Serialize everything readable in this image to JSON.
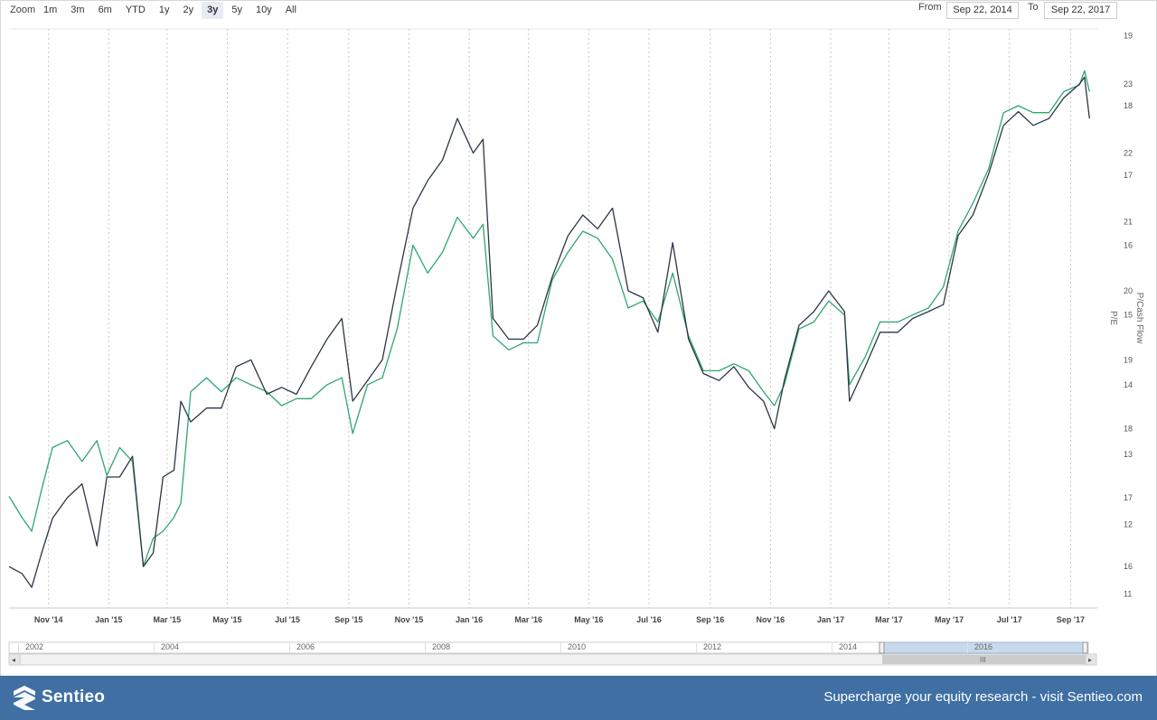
{
  "toolbar": {
    "zoom_label": "Zoom",
    "zoom_buttons": [
      "1m",
      "3m",
      "6m",
      "YTD",
      "1y",
      "2y",
      "3y",
      "5y",
      "10y",
      "All"
    ],
    "active_zoom": "3y",
    "from_label": "From",
    "from_value": "Sep 22, 2014",
    "to_label": "To",
    "to_value": "Sep 22, 2017"
  },
  "chart_data": {
    "type": "line",
    "x_tick_labels": [
      "Nov '14",
      "Jan '15",
      "Mar '15",
      "May '15",
      "Jul '15",
      "Sep '15",
      "Nov '15",
      "Jan '16",
      "Mar '16",
      "May '16",
      "Jul '16",
      "Sep '16",
      "Nov '16",
      "Jan '17",
      "Mar '17",
      "May '17",
      "Jul '17",
      "Sep '17"
    ],
    "y_left": {
      "label": "P/E",
      "ticks": [
        16,
        17,
        18,
        19,
        20,
        21,
        22,
        23
      ],
      "range": [
        15.4,
        23.8
      ]
    },
    "y_right": {
      "label": "P/Cash Flow",
      "ticks": [
        11,
        12,
        13,
        14,
        15,
        16,
        17,
        18,
        19
      ],
      "range": [
        10.8,
        19.1
      ]
    },
    "grid": "vertical dotted",
    "colors": {
      "pe": "#2b3645",
      "pcf": "#2fa66f"
    },
    "series": [
      {
        "axis": "left",
        "points": [
          [
            "2014-09-22",
            16.0
          ],
          [
            "2014-10-05",
            15.9
          ],
          [
            "2014-10-15",
            15.7
          ],
          [
            "2014-10-25",
            16.2
          ],
          [
            "2014-11-05",
            16.7
          ],
          [
            "2014-11-20",
            17.0
          ],
          [
            "2014-12-05",
            17.2
          ],
          [
            "2014-12-20",
            16.3
          ],
          [
            "2014-12-30",
            17.3
          ],
          [
            "2015-01-12",
            17.3
          ],
          [
            "2015-01-25",
            17.6
          ],
          [
            "2015-02-05",
            16.0
          ],
          [
            "2015-02-15",
            16.2
          ],
          [
            "2015-02-25",
            17.3
          ],
          [
            "2015-03-08",
            17.4
          ],
          [
            "2015-03-15",
            18.4
          ],
          [
            "2015-03-25",
            18.1
          ],
          [
            "2015-04-10",
            18.3
          ],
          [
            "2015-04-25",
            18.3
          ],
          [
            "2015-05-10",
            18.9
          ],
          [
            "2015-05-25",
            19.0
          ],
          [
            "2015-06-10",
            18.5
          ],
          [
            "2015-06-25",
            18.6
          ],
          [
            "2015-07-10",
            18.5
          ],
          [
            "2015-07-25",
            18.9
          ],
          [
            "2015-08-10",
            19.3
          ],
          [
            "2015-08-25",
            19.6
          ],
          [
            "2015-09-05",
            18.4
          ],
          [
            "2015-09-20",
            18.7
          ],
          [
            "2015-10-05",
            19.0
          ],
          [
            "2015-10-20",
            20.1
          ],
          [
            "2015-11-05",
            21.2
          ],
          [
            "2015-11-20",
            21.6
          ],
          [
            "2015-12-05",
            21.9
          ],
          [
            "2015-12-20",
            22.5
          ],
          [
            "2016-01-05",
            22.0
          ],
          [
            "2016-01-15",
            22.2
          ],
          [
            "2016-01-25",
            19.6
          ],
          [
            "2016-02-10",
            19.3
          ],
          [
            "2016-02-25",
            19.3
          ],
          [
            "2016-03-10",
            19.5
          ],
          [
            "2016-03-25",
            20.2
          ],
          [
            "2016-04-10",
            20.8
          ],
          [
            "2016-04-25",
            21.1
          ],
          [
            "2016-05-10",
            20.9
          ],
          [
            "2016-05-25",
            21.2
          ],
          [
            "2016-06-10",
            20.0
          ],
          [
            "2016-06-25",
            19.9
          ],
          [
            "2016-07-10",
            19.4
          ],
          [
            "2016-07-25",
            20.7
          ],
          [
            "2016-08-10",
            19.3
          ],
          [
            "2016-08-25",
            18.8
          ],
          [
            "2016-09-10",
            18.7
          ],
          [
            "2016-09-25",
            18.9
          ],
          [
            "2016-10-10",
            18.6
          ],
          [
            "2016-10-25",
            18.4
          ],
          [
            "2016-11-05",
            18.0
          ],
          [
            "2016-11-15",
            18.7
          ],
          [
            "2016-11-30",
            19.5
          ],
          [
            "2016-12-15",
            19.7
          ],
          [
            "2016-12-30",
            20.0
          ],
          [
            "2017-01-15",
            19.7
          ],
          [
            "2017-01-20",
            18.4
          ],
          [
            "2017-02-05",
            18.9
          ],
          [
            "2017-02-20",
            19.4
          ],
          [
            "2017-03-10",
            19.4
          ],
          [
            "2017-03-25",
            19.6
          ],
          [
            "2017-04-10",
            19.7
          ],
          [
            "2017-04-25",
            19.8
          ],
          [
            "2017-05-10",
            20.8
          ],
          [
            "2017-05-25",
            21.1
          ],
          [
            "2017-06-10",
            21.7
          ],
          [
            "2017-06-25",
            22.4
          ],
          [
            "2017-07-10",
            22.6
          ],
          [
            "2017-07-25",
            22.4
          ],
          [
            "2017-08-10",
            22.5
          ],
          [
            "2017-08-25",
            22.8
          ],
          [
            "2017-09-10",
            23.0
          ],
          [
            "2017-09-15",
            23.1
          ],
          [
            "2017-09-20",
            22.5
          ]
        ]
      },
      {
        "axis": "right",
        "points": [
          [
            "2014-09-22",
            12.4
          ],
          [
            "2014-10-05",
            12.1
          ],
          [
            "2014-10-15",
            11.9
          ],
          [
            "2014-10-25",
            12.5
          ],
          [
            "2014-11-05",
            13.1
          ],
          [
            "2014-11-20",
            13.2
          ],
          [
            "2014-12-05",
            12.9
          ],
          [
            "2014-12-20",
            13.2
          ],
          [
            "2014-12-30",
            12.7
          ],
          [
            "2015-01-12",
            13.1
          ],
          [
            "2015-01-25",
            12.9
          ],
          [
            "2015-02-05",
            11.4
          ],
          [
            "2015-02-15",
            11.8
          ],
          [
            "2015-02-25",
            11.9
          ],
          [
            "2015-03-08",
            12.1
          ],
          [
            "2015-03-15",
            12.3
          ],
          [
            "2015-03-25",
            13.9
          ],
          [
            "2015-04-10",
            14.1
          ],
          [
            "2015-04-25",
            13.9
          ],
          [
            "2015-05-10",
            14.1
          ],
          [
            "2015-05-25",
            14.0
          ],
          [
            "2015-06-10",
            13.9
          ],
          [
            "2015-06-25",
            13.7
          ],
          [
            "2015-07-10",
            13.8
          ],
          [
            "2015-07-25",
            13.8
          ],
          [
            "2015-08-10",
            14.0
          ],
          [
            "2015-08-25",
            14.1
          ],
          [
            "2015-09-05",
            13.3
          ],
          [
            "2015-09-20",
            14.0
          ],
          [
            "2015-10-05",
            14.1
          ],
          [
            "2015-10-20",
            14.8
          ],
          [
            "2015-11-05",
            16.0
          ],
          [
            "2015-11-20",
            15.6
          ],
          [
            "2015-12-05",
            15.9
          ],
          [
            "2015-12-20",
            16.4
          ],
          [
            "2016-01-05",
            16.1
          ],
          [
            "2016-01-15",
            16.3
          ],
          [
            "2016-01-25",
            14.7
          ],
          [
            "2016-02-10",
            14.5
          ],
          [
            "2016-02-25",
            14.6
          ],
          [
            "2016-03-10",
            14.6
          ],
          [
            "2016-03-25",
            15.5
          ],
          [
            "2016-04-10",
            15.9
          ],
          [
            "2016-04-25",
            16.2
          ],
          [
            "2016-05-10",
            16.1
          ],
          [
            "2016-05-25",
            15.8
          ],
          [
            "2016-06-10",
            15.1
          ],
          [
            "2016-06-25",
            15.2
          ],
          [
            "2016-07-10",
            14.9
          ],
          [
            "2016-07-25",
            15.6
          ],
          [
            "2016-08-10",
            14.7
          ],
          [
            "2016-08-25",
            14.2
          ],
          [
            "2016-09-10",
            14.2
          ],
          [
            "2016-09-25",
            14.3
          ],
          [
            "2016-10-10",
            14.2
          ],
          [
            "2016-10-25",
            13.9
          ],
          [
            "2016-11-05",
            13.7
          ],
          [
            "2016-11-15",
            14.0
          ],
          [
            "2016-11-30",
            14.8
          ],
          [
            "2016-12-15",
            14.9
          ],
          [
            "2016-12-30",
            15.2
          ],
          [
            "2017-01-15",
            15.0
          ],
          [
            "2017-01-20",
            14.0
          ],
          [
            "2017-02-05",
            14.4
          ],
          [
            "2017-02-20",
            14.9
          ],
          [
            "2017-03-10",
            14.9
          ],
          [
            "2017-03-25",
            15.0
          ],
          [
            "2017-04-10",
            15.1
          ],
          [
            "2017-04-25",
            15.4
          ],
          [
            "2017-05-10",
            16.2
          ],
          [
            "2017-05-25",
            16.6
          ],
          [
            "2017-06-10",
            17.1
          ],
          [
            "2017-06-25",
            17.9
          ],
          [
            "2017-07-10",
            18.0
          ],
          [
            "2017-07-25",
            17.9
          ],
          [
            "2017-08-10",
            17.9
          ],
          [
            "2017-08-25",
            18.2
          ],
          [
            "2017-09-10",
            18.3
          ],
          [
            "2017-09-15",
            18.5
          ],
          [
            "2017-09-20",
            18.2
          ]
        ]
      }
    ]
  },
  "navigator": {
    "year_labels": [
      "2002",
      "2004",
      "2006",
      "2008",
      "2010",
      "2012",
      "2014",
      "2016"
    ],
    "scroll_left_arrow": "◂",
    "scroll_right_arrow": "▸",
    "scroll_grip": "III",
    "colors": {
      "handle_fill": "#c9d9ec",
      "scrollbar": "#cccccc"
    }
  },
  "footer": {
    "brand": "Sentieo",
    "tagline": "Supercharge your equity research - visit Sentieo.com",
    "background": "#3f6fa3"
  }
}
